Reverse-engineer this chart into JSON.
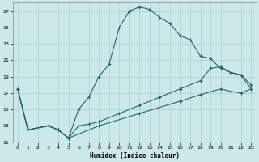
{
  "xlabel": "Humidex (Indice chaleur)",
  "xlim": [
    -0.5,
    23.5
  ],
  "ylim": [
    11,
    28
  ],
  "yticks": [
    11,
    13,
    15,
    17,
    19,
    21,
    23,
    25,
    27
  ],
  "xticks": [
    0,
    1,
    2,
    3,
    4,
    5,
    6,
    7,
    8,
    9,
    10,
    11,
    12,
    13,
    14,
    15,
    16,
    17,
    18,
    19,
    20,
    21,
    22,
    23
  ],
  "bg_color": "#cce8e8",
  "grid_color": "#aacfcf",
  "line_color": "#1a6b6b",
  "line1_x": [
    0,
    1,
    3,
    4,
    5,
    6,
    7,
    8,
    9,
    10,
    11,
    12,
    13,
    14,
    15,
    16,
    17,
    18,
    19,
    20,
    21,
    22,
    23
  ],
  "line1_y": [
    17.5,
    12.5,
    13.0,
    12.5,
    11.5,
    15.0,
    16.5,
    19.0,
    20.5,
    25.0,
    27.0,
    27.5,
    27.2,
    26.2,
    25.5,
    24.0,
    23.5,
    21.5,
    21.2,
    20.0,
    19.5,
    19.2,
    17.5
  ],
  "line2_x": [
    0,
    1,
    3,
    4,
    5,
    6,
    7,
    8,
    10,
    12,
    14,
    16,
    18,
    19,
    20,
    21,
    22,
    23
  ],
  "line2_y": [
    17.5,
    12.5,
    13.0,
    12.5,
    11.5,
    13.0,
    13.2,
    13.5,
    14.5,
    15.5,
    16.5,
    17.5,
    18.5,
    20.0,
    20.2,
    19.5,
    19.2,
    18.0
  ],
  "line3_x": [
    0,
    1,
    3,
    4,
    5,
    8,
    12,
    16,
    18,
    20,
    21,
    22,
    23
  ],
  "line3_y": [
    17.5,
    12.5,
    13.0,
    12.5,
    11.5,
    13.0,
    14.5,
    16.0,
    16.8,
    17.5,
    17.2,
    17.0,
    17.5
  ]
}
